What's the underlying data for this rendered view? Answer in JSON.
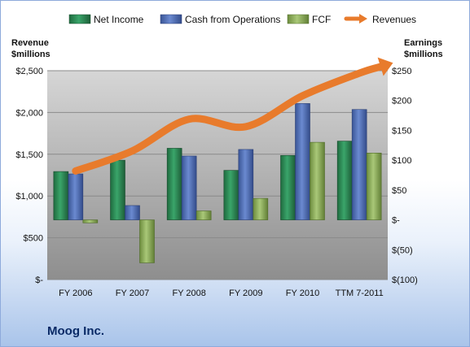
{
  "chart_data": {
    "type": "bar",
    "title": "Moog Inc.",
    "categories": [
      "FY 2006",
      "FY 2007",
      "FY 2008",
      "FY 2009",
      "FY 2010",
      "TTM 7-2011"
    ],
    "left_axis": {
      "label_line1": "Revenue",
      "label_line2": "$millions",
      "ticks": [
        "$2,500",
        "$2,000",
        "$1,500",
        "$1,000",
        "$500",
        "$-"
      ],
      "range": [
        0,
        2500
      ]
    },
    "right_axis": {
      "label_line1": "Earnings",
      "label_line2": "$millions",
      "ticks": [
        "$250",
        "$200",
        "$150",
        "$100",
        "$50",
        "$-",
        "$(50)",
        "$(100)"
      ],
      "range": [
        -100,
        250
      ]
    },
    "series": [
      {
        "name": "Net Income",
        "axis": "right",
        "color": "#2e8b57",
        "values": [
          81,
          100,
          120,
          83,
          108,
          132
        ]
      },
      {
        "name": "Cash from Operations",
        "axis": "right",
        "color": "#4f6fb5",
        "values": [
          77,
          24,
          107,
          118,
          195,
          185
        ]
      },
      {
        "name": "FCF",
        "axis": "right",
        "color": "#8fb15a",
        "values": [
          -5,
          -72,
          15,
          36,
          130,
          112
        ]
      },
      {
        "name": "Revenues",
        "axis": "left",
        "type": "line",
        "color": "#e87b2c",
        "values": [
          1300,
          1540,
          1920,
          1830,
          2200,
          2470
        ]
      }
    ],
    "grid": true,
    "legend": "top"
  }
}
